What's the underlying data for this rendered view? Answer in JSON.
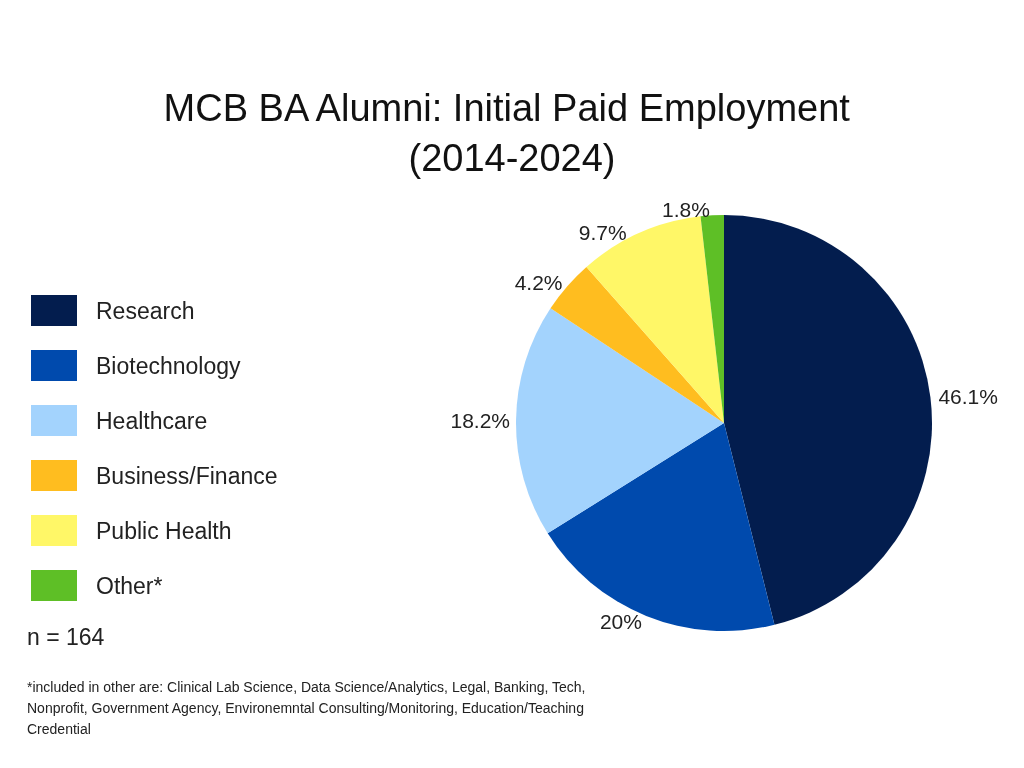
{
  "chart_data": {
    "type": "pie",
    "title": "MCB BA Alumni: Initial Paid Employment (2014-2024)",
    "categories": [
      "Research",
      "Biotechnology",
      "Healthcare",
      "Business/Finance",
      "Public Health",
      "Other*"
    ],
    "values": [
      46.1,
      20,
      18.2,
      4.2,
      9.7,
      1.8
    ],
    "colors": [
      "#031d4e",
      "#004aad",
      "#a3d3fd",
      "#ffbd1f",
      "#fff767",
      "#5ebf26"
    ],
    "value_labels": [
      "46.1%",
      "20%",
      "18.2%",
      "4.2%",
      "9.7%",
      "1.8%"
    ],
    "legend": "left",
    "annotations": [
      "n = 164",
      "*included in other are: Clinical Lab Science, Data Science/Analytics, Legal, Banking, Tech, Nonprofit, Government Agency, Environemntal Consulting/Monitoring, Education/Teaching Credential"
    ]
  }
}
